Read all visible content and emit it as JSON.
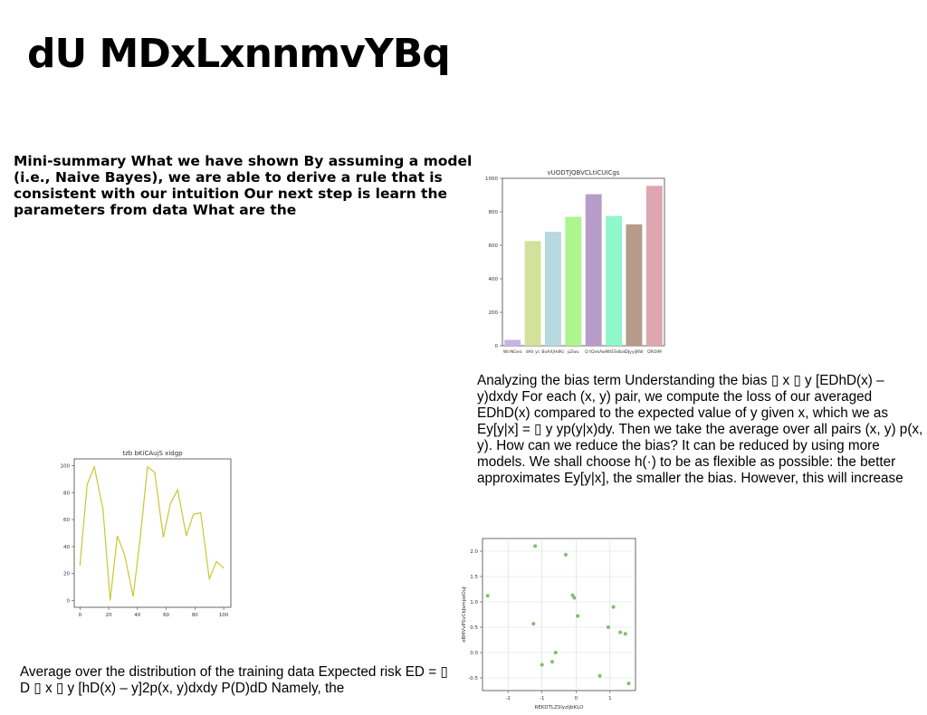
{
  "page": {
    "title": "dU MDxLxnnmvYBq",
    "summary": "Mini-summary What we have shown By assuming a model (i.e., Naive Bayes), we are able to derive a rule that is consistent with our intuition Our next step is learn the parameters from data What are the",
    "bias_text": "Analyzing the bias term Understanding the bias ▯ x ▯ y [EDhD(x) – y)dxdy For each (x, y) pair, we compute the loss of our averaged EDhD(x) compared to the expected value of y given x, which we as Ey[y|x] = ▯ y yp(y|x)dy. Then we take the average over all pairs (x, y) p(x, y). How can we reduce the bias? It can be reduced by using more models. We shall choose h(·) to be as flexible as possible: the better approximates Ey[y|x], the smaller the bias. However, this will increase",
    "risk_text": "Average over the distribution of the training data Expected risk ED = ▯ D ▯ x ▯ y [hD(x) – y]2p(x, y)dxdy P(D)dD Namely, the"
  },
  "chart_data": [
    {
      "type": "bar",
      "title": "vUODTJQBVCLtiCUICgs",
      "categories": [
        "WrrNGeo",
        "dAh yc",
        "BoAXjHdKc",
        "pZwu",
        "Q tQvkA",
        "wNtIESdbal",
        "DJyyiJKW",
        "QROIM"
      ],
      "values": [
        35,
        625,
        680,
        770,
        905,
        775,
        725,
        955
      ],
      "colors": [
        "#c5b3e6",
        "#d4e19a",
        "#b7d8df",
        "#adf58f",
        "#b79cc8",
        "#8ff7c9",
        "#b79a8a",
        "#dea6b0"
      ],
      "yticks": [
        0,
        200,
        400,
        600,
        800,
        1000
      ],
      "ylim": [
        0,
        1000
      ],
      "xlabel": "",
      "ylabel": ""
    },
    {
      "type": "line",
      "title": "tzb bKiCAujS xidgp",
      "x": [
        0,
        5,
        10,
        16,
        21,
        26,
        31,
        37,
        42,
        47,
        52,
        58,
        63,
        68,
        74,
        79,
        84,
        90,
        95,
        100
      ],
      "y": [
        26,
        86,
        99,
        68,
        0,
        48,
        34,
        3,
        47,
        99,
        95,
        47,
        72,
        82,
        48,
        64,
        65,
        16,
        29,
        24
      ],
      "xticks": [
        0,
        20,
        40,
        60,
        80,
        100
      ],
      "yticks": [
        0,
        20,
        40,
        60,
        80,
        100
      ],
      "xlim": [
        -4,
        105
      ],
      "ylim": [
        -5,
        105
      ],
      "color": "#c8c832",
      "xlabel": "",
      "ylabel": ""
    },
    {
      "type": "scatter",
      "title": "",
      "x": [
        -2.6,
        -1.2,
        -0.3,
        -0.1,
        -0.05,
        0.05,
        -1.25,
        0.95,
        1.1,
        1.3,
        1.45,
        0.7,
        -0.6,
        -0.7,
        -1.0,
        1.55
      ],
      "y": [
        1.12,
        2.1,
        1.93,
        1.13,
        1.08,
        0.72,
        0.57,
        0.5,
        0.9,
        0.4,
        0.37,
        -0.46,
        0.0,
        -0.18,
        -0.24,
        -0.61
      ],
      "xticks": [
        -2,
        -1,
        0,
        1
      ],
      "yticks": [
        -0.5,
        0.0,
        0.5,
        1.0,
        1.5,
        2.0
      ],
      "ytick_labels": [
        "-0.5",
        "0.0",
        "0.5",
        "1.0",
        "1.5",
        "2.0"
      ],
      "xlim": [
        -2.75,
        1.75
      ],
      "ylim": [
        -0.75,
        2.25
      ],
      "color": "#7fbf6f",
      "grid": true,
      "xlabel": "REKDTLZSlyzIjbKLO",
      "ylabel": "eBHVvPSvCkJsmpoOuJ"
    }
  ]
}
